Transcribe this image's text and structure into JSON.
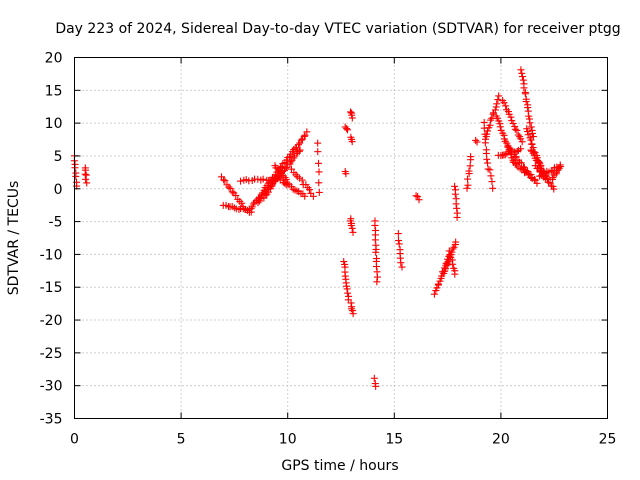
{
  "chart_data": {
    "type": "scatter",
    "title": "Day 223 of 2024, Sidereal Day-to-day VTEC variation (SDTVAR) for receiver ptgg",
    "xlabel": "GPS time / hours",
    "ylabel": "SDTVAR / TECUs",
    "xlim": [
      0,
      25
    ],
    "ylim": [
      -35,
      20
    ],
    "xticks": [
      0,
      5,
      10,
      15,
      20,
      25
    ],
    "yticks": [
      -35,
      -30,
      -25,
      -20,
      -15,
      -10,
      -5,
      0,
      5,
      10,
      15,
      20
    ],
    "grid": true,
    "marker": "plus",
    "color": "#ff0000",
    "series": [
      {
        "name": "SDTVAR",
        "segments": [
          {
            "x0": 0.0,
            "x1": 0.1,
            "y0": 5.0,
            "y1": 0.5,
            "n": 8
          },
          {
            "x0": 0.5,
            "x1": 0.55,
            "y0": 3.3,
            "y1": 1.0,
            "n": 6
          },
          {
            "x0": 6.9,
            "x1": 8.0,
            "y0": 1.8,
            "y1": -3.0,
            "n": 14
          },
          {
            "x0": 7.0,
            "x1": 8.3,
            "y0": -2.5,
            "y1": -3.5,
            "n": 14
          },
          {
            "x0": 7.8,
            "x1": 9.8,
            "y0": 1.2,
            "y1": 1.5,
            "n": 16
          },
          {
            "x0": 8.2,
            "x1": 10.9,
            "y0": -3.2,
            "y1": 8.5,
            "n": 40
          },
          {
            "x0": 8.6,
            "x1": 10.6,
            "y0": -2.0,
            "y1": 6.0,
            "n": 32
          },
          {
            "x0": 8.9,
            "x1": 9.5,
            "y0": -1.5,
            "y1": 1.8,
            "n": 10
          },
          {
            "x0": 9.4,
            "x1": 10.0,
            "y0": 3.5,
            "y1": 1.0,
            "n": 10
          },
          {
            "x0": 9.8,
            "x1": 10.8,
            "y0": 1.0,
            "y1": -1.0,
            "n": 12
          },
          {
            "x0": 10.2,
            "x1": 11.2,
            "y0": 3.0,
            "y1": -1.0,
            "n": 12
          },
          {
            "x0": 11.4,
            "x1": 11.5,
            "y0": 7.0,
            "y1": -0.5,
            "n": 6
          },
          {
            "x0": 12.65,
            "x1": 12.85,
            "y0": -11.0,
            "y1": -17.0,
            "n": 12
          },
          {
            "x0": 12.7,
            "x1": 12.8,
            "y0": 9.5,
            "y1": 9.0,
            "n": 3
          },
          {
            "x0": 12.7,
            "x1": 12.75,
            "y0": 2.5,
            "y1": 2.3,
            "n": 2
          },
          {
            "x0": 12.95,
            "x1": 13.05,
            "y0": 11.8,
            "y1": 10.8,
            "n": 4
          },
          {
            "x0": 12.95,
            "x1": 13.05,
            "y0": 8.0,
            "y1": 7.2,
            "n": 3
          },
          {
            "x0": 12.95,
            "x1": 13.05,
            "y0": -4.5,
            "y1": -6.5,
            "n": 6
          },
          {
            "x0": 12.95,
            "x1": 13.05,
            "y0": -17.5,
            "y1": -19.0,
            "n": 5
          },
          {
            "x0": 14.1,
            "x1": 14.2,
            "y0": -5.0,
            "y1": -14.0,
            "n": 14
          },
          {
            "x0": 14.05,
            "x1": 14.15,
            "y0": -29.0,
            "y1": -30.0,
            "n": 3
          },
          {
            "x0": 15.2,
            "x1": 15.35,
            "y0": -7.0,
            "y1": -12.0,
            "n": 8
          },
          {
            "x0": 16.0,
            "x1": 16.15,
            "y0": -1.0,
            "y1": -1.5,
            "n": 3
          },
          {
            "x0": 16.9,
            "x1": 17.6,
            "y0": -16.0,
            "y1": -10.0,
            "n": 16
          },
          {
            "x0": 17.3,
            "x1": 17.9,
            "y0": -13.0,
            "y1": -8.0,
            "n": 14
          },
          {
            "x0": 17.6,
            "x1": 17.85,
            "y0": -9.5,
            "y1": -13.0,
            "n": 8
          },
          {
            "x0": 17.85,
            "x1": 17.95,
            "y0": 0.5,
            "y1": -4.5,
            "n": 8
          },
          {
            "x0": 18.4,
            "x1": 18.6,
            "y0": 0.0,
            "y1": 5.0,
            "n": 8
          },
          {
            "x0": 18.8,
            "x1": 18.9,
            "y0": 7.5,
            "y1": 7.0,
            "n": 2
          },
          {
            "x0": 19.2,
            "x1": 19.4,
            "y0": 10.0,
            "y1": 3.0,
            "n": 10
          },
          {
            "x0": 19.3,
            "x1": 19.9,
            "y0": 8.0,
            "y1": 14.0,
            "n": 14
          },
          {
            "x0": 19.5,
            "x1": 19.6,
            "y0": 3.0,
            "y1": 0.0,
            "n": 4
          },
          {
            "x0": 19.8,
            "x1": 20.6,
            "y0": 11.0,
            "y1": 4.0,
            "n": 18
          },
          {
            "x0": 19.9,
            "x1": 20.9,
            "y0": 5.0,
            "y1": 6.0,
            "n": 14
          },
          {
            "x0": 20.1,
            "x1": 21.0,
            "y0": 13.5,
            "y1": 7.0,
            "n": 16
          },
          {
            "x0": 20.3,
            "x1": 21.4,
            "y0": 6.5,
            "y1": 2.0,
            "n": 16
          },
          {
            "x0": 20.6,
            "x1": 21.7,
            "y0": 4.0,
            "y1": 1.0,
            "n": 16
          },
          {
            "x0": 20.95,
            "x1": 21.5,
            "y0": 18.0,
            "y1": 8.0,
            "n": 20
          },
          {
            "x0": 21.2,
            "x1": 21.9,
            "y0": 9.0,
            "y1": 3.0,
            "n": 16
          },
          {
            "x0": 21.4,
            "x1": 22.2,
            "y0": 6.0,
            "y1": 1.5,
            "n": 16
          },
          {
            "x0": 21.6,
            "x1": 22.5,
            "y0": 3.5,
            "y1": 0.0,
            "n": 14
          },
          {
            "x0": 21.8,
            "x1": 22.8,
            "y0": 2.0,
            "y1": 3.5,
            "n": 12
          },
          {
            "x0": 22.4,
            "x1": 22.8,
            "y0": 1.5,
            "y1": 3.5,
            "n": 8
          }
        ]
      }
    ]
  }
}
